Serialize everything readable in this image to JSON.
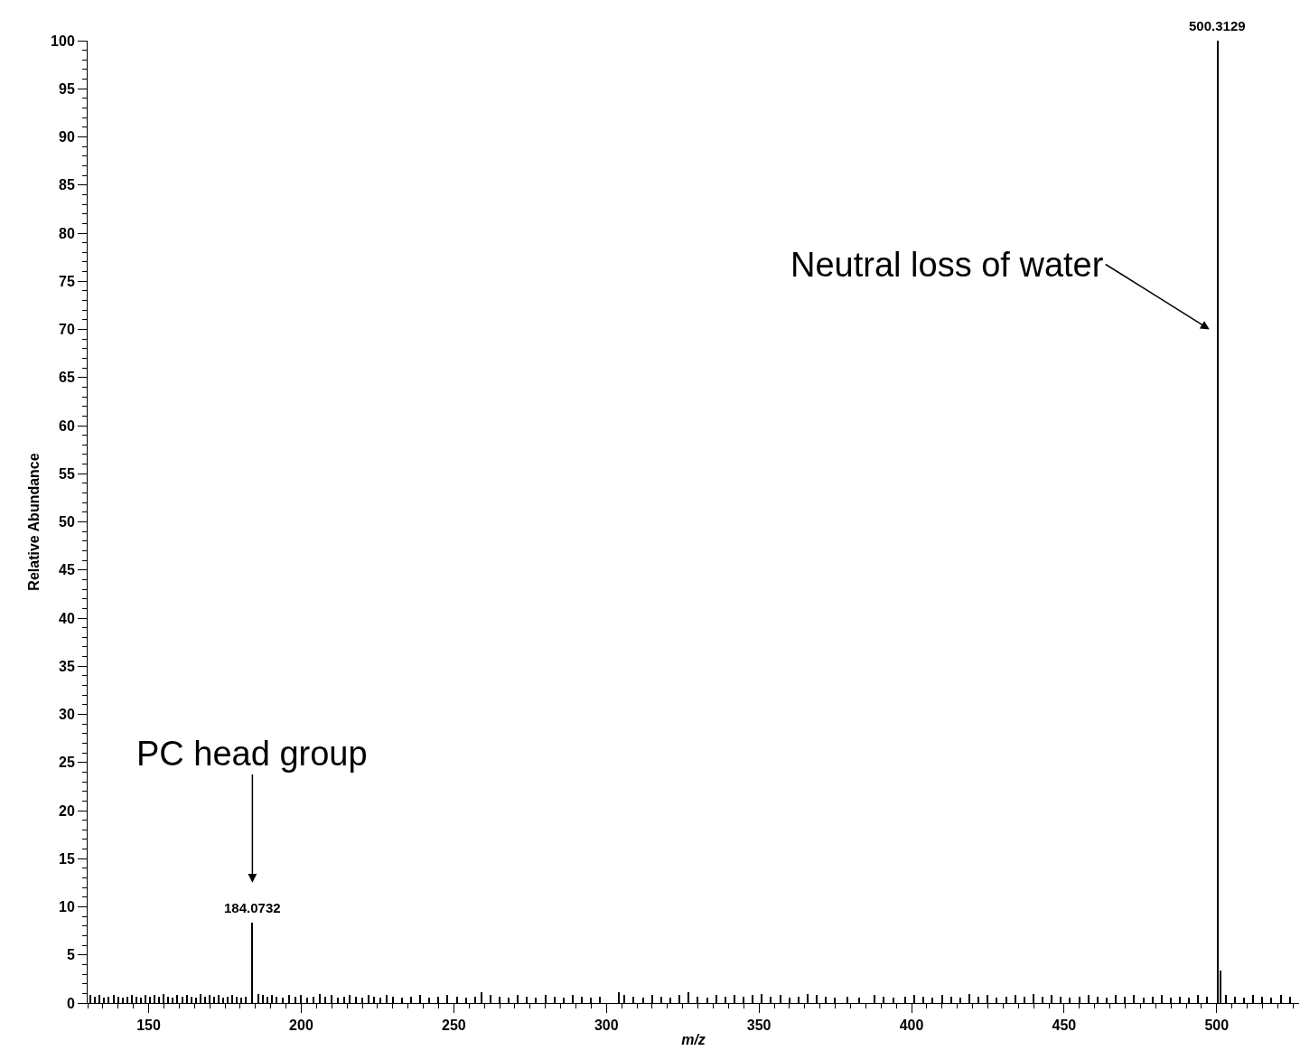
{
  "chart_data": {
    "type": "bar",
    "xlabel": "m/z",
    "ylabel": "Relative Abundance",
    "x": [
      131,
      132.5,
      134,
      135.5,
      137,
      138.5,
      140,
      141.5,
      143,
      144.5,
      146,
      147.5,
      149,
      150.5,
      152,
      153.5,
      155,
      156.5,
      158,
      159.5,
      161,
      162.5,
      164,
      165.5,
      167,
      168.5,
      170,
      171.5,
      173,
      174.5,
      176,
      177.5,
      179,
      180.5,
      182,
      184.0732,
      186,
      187.5,
      189,
      190.5,
      192,
      194,
      196,
      198,
      200,
      202,
      204,
      206,
      208,
      210,
      212,
      214,
      216,
      218,
      220,
      222,
      224,
      226,
      228,
      230,
      233,
      236,
      239,
      242,
      245,
      248,
      251,
      254,
      257,
      259,
      262,
      265,
      268,
      271,
      274,
      277,
      280,
      283,
      286,
      289,
      292,
      295,
      298,
      304,
      306,
      309,
      312,
      315,
      318,
      321,
      324,
      327,
      330,
      333,
      336,
      339,
      342,
      345,
      348,
      351,
      354,
      357,
      360,
      363,
      366,
      369,
      372,
      375,
      379,
      383,
      388,
      391,
      394,
      398,
      401,
      404,
      407,
      410,
      413,
      416,
      419,
      422,
      425,
      428,
      431,
      434,
      437,
      440,
      443,
      446,
      449,
      452,
      455,
      458,
      461,
      464,
      467,
      470,
      473,
      476,
      479,
      482,
      485,
      488,
      491,
      494,
      497,
      500.3129,
      501.3,
      503,
      506,
      509,
      512,
      515,
      518,
      521,
      524
    ],
    "values": [
      0.8,
      0.7,
      0.8,
      0.6,
      0.7,
      0.8,
      0.7,
      0.6,
      0.7,
      0.8,
      0.7,
      0.6,
      0.8,
      0.7,
      0.8,
      0.7,
      0.9,
      0.7,
      0.6,
      0.8,
      0.7,
      0.8,
      0.7,
      0.6,
      0.9,
      0.7,
      0.8,
      0.7,
      0.8,
      0.6,
      0.7,
      0.8,
      0.7,
      0.6,
      0.7,
      8.4,
      0.9,
      0.8,
      0.7,
      0.8,
      0.7,
      0.6,
      0.8,
      0.7,
      0.8,
      0.6,
      0.7,
      0.9,
      0.7,
      0.8,
      0.6,
      0.7,
      0.8,
      0.7,
      0.6,
      0.8,
      0.7,
      0.6,
      0.8,
      0.7,
      0.6,
      0.7,
      0.8,
      0.6,
      0.7,
      0.8,
      0.7,
      0.6,
      0.7,
      1.1,
      0.8,
      0.7,
      0.6,
      0.8,
      0.7,
      0.6,
      0.8,
      0.7,
      0.6,
      0.8,
      0.7,
      0.6,
      0.7,
      1.1,
      0.8,
      0.7,
      0.6,
      0.8,
      0.7,
      0.6,
      0.8,
      1.1,
      0.7,
      0.6,
      0.8,
      0.7,
      0.8,
      0.7,
      0.8,
      0.9,
      0.7,
      0.8,
      0.6,
      0.7,
      0.9,
      0.8,
      0.7,
      0.6,
      0.7,
      0.6,
      0.8,
      0.7,
      0.6,
      0.7,
      0.8,
      0.7,
      0.6,
      0.8,
      0.7,
      0.6,
      0.9,
      0.7,
      0.8,
      0.6,
      0.7,
      0.8,
      0.7,
      0.9,
      0.7,
      0.8,
      0.7,
      0.6,
      0.7,
      0.8,
      0.7,
      0.6,
      0.8,
      0.7,
      0.8,
      0.6,
      0.7,
      0.8,
      0.6,
      0.7,
      0.6,
      0.8,
      0.7,
      100,
      3.4,
      0.8,
      0.7,
      0.6,
      0.8,
      0.7,
      0.6,
      0.8,
      0.7
    ],
    "color": "#000000",
    "xlim": [
      130,
      527
    ],
    "xticks": [
      150,
      200,
      250,
      300,
      350,
      400,
      450,
      500
    ],
    "ylim": [
      0,
      100
    ],
    "yticks": [
      0,
      5,
      10,
      15,
      20,
      25,
      30,
      35,
      40,
      45,
      50,
      55,
      60,
      65,
      70,
      75,
      80,
      85,
      90,
      95,
      100
    ],
    "annotations": [
      "PC head group",
      "Neutral loss of water",
      {
        "text": "184.0732",
        "x": 184.0732,
        "y": 8.4
      },
      {
        "text": "500.3129",
        "x": 500.3129,
        "y": 100
      }
    ]
  }
}
